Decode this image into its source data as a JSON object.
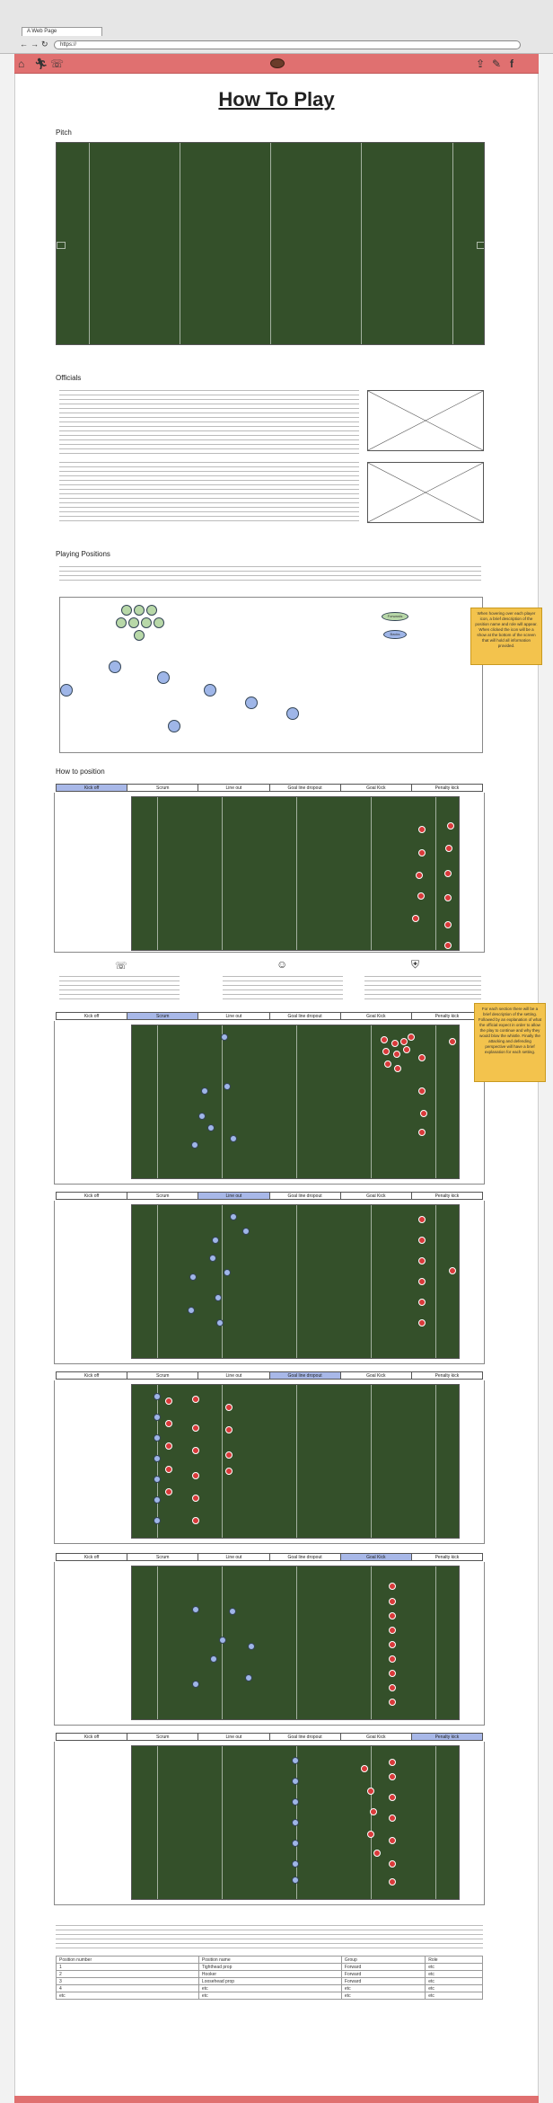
{
  "browser": {
    "tab_title": "A Web Page",
    "url": "https://"
  },
  "page_title": "How To Play",
  "sections": {
    "pitch": "Pitch",
    "officials": "Officials",
    "positions": "Playing Positions",
    "how_to": "How to position"
  },
  "position_chips": {
    "forwards": "Forwards",
    "backs": "Backs"
  },
  "notes": {
    "positions": "When hovering over each player icon, a brief description of the position name and role will appear. When clicked the icon will be a show at the bottom of the screen that will hold all information provided.",
    "how_to": "For each section there will be a brief description of the setting. Followed by an explanation of what the official expect in order to allow the play to continue and why they would blow the whistle. Finally the attacking and defending perspective will have a brief explanation for each setting."
  },
  "set_piece_tabs": [
    "Kick off",
    "Scrum",
    "Line out",
    "Goal line dropout",
    "Goal Kick",
    "Penalty kick"
  ],
  "table": {
    "headers": [
      "Position number",
      "Position name",
      "Group",
      "Role"
    ],
    "rows": [
      [
        "1",
        "Tighthead prop",
        "Forward",
        "etc"
      ],
      [
        "2",
        "Hooker",
        "Forward",
        "etc"
      ],
      [
        "3",
        "Loosehead prop",
        "Forward",
        "etc"
      ],
      [
        "4",
        "etc",
        "etc",
        "etc"
      ],
      [
        "etc",
        "etc",
        "etc",
        "etc"
      ]
    ]
  },
  "colors": {
    "brand": "#e07070",
    "active_tab": "#a8b8e8",
    "note": "#f3c34d",
    "team_red": "#d93a3a",
    "team_blue": "#9fb6e8"
  }
}
